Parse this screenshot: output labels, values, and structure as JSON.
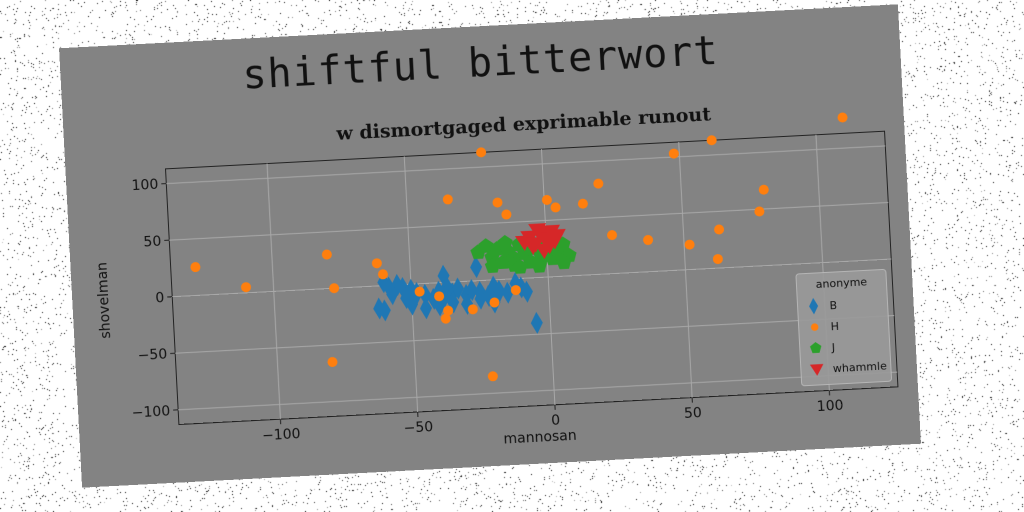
{
  "figure": {
    "suptitle": "shiftful bitterwort"
  },
  "chart_data": {
    "type": "scatter",
    "title": "w dismortgaged exprimable runout",
    "xlabel": "mannosan",
    "ylabel": "shovelman",
    "xlim": [
      -137,
      125
    ],
    "ylim": [
      -113,
      113
    ],
    "xticks": [
      -100,
      -50,
      0,
      50,
      100
    ],
    "yticks": [
      -100,
      -50,
      0,
      50,
      100
    ],
    "grid": true,
    "legend": {
      "title": "anonyme",
      "placement": "bottom-right"
    },
    "colors": {
      "B": "#1f77b4",
      "H": "#ff7f0e",
      "J": "#2ca02c",
      "whammle": "#d62728"
    },
    "series": [
      {
        "name": "B",
        "marker": "diamond",
        "points": [
          [
            -55,
            0
          ],
          [
            -58,
            -2
          ],
          [
            -60,
            3
          ],
          [
            -57,
            -8
          ],
          [
            -53,
            -3
          ],
          [
            -50,
            -5
          ],
          [
            -52,
            -12
          ],
          [
            -48,
            -8
          ],
          [
            -45,
            -10
          ],
          [
            -42,
            -14
          ],
          [
            -40,
            -8
          ],
          [
            -38,
            -12
          ],
          [
            -37,
            -4
          ],
          [
            -35,
            -10
          ],
          [
            -33,
            -6
          ],
          [
            -30,
            -12
          ],
          [
            -28,
            -8
          ],
          [
            -25,
            -10
          ],
          [
            -22,
            -14
          ],
          [
            -20,
            -6
          ],
          [
            -18,
            -10
          ],
          [
            -15,
            -12
          ],
          [
            -12,
            -4
          ],
          [
            -10,
            -8
          ],
          [
            -8,
            -12
          ],
          [
            -45,
            -22
          ],
          [
            -40,
            -20
          ],
          [
            -35,
            -18
          ],
          [
            -30,
            -20
          ],
          [
            -25,
            -16
          ],
          [
            -20,
            -20
          ],
          [
            -62,
            -20
          ],
          [
            -60,
            -22
          ],
          [
            -50,
            -18
          ],
          [
            -38,
            6
          ],
          [
            -26,
            12
          ],
          [
            -5,
            -40
          ]
        ]
      },
      {
        "name": "H",
        "marker": "circle",
        "points": [
          [
            -128,
            25
          ],
          [
            -110,
            5
          ],
          [
            -80,
            30
          ],
          [
            -78,
            0
          ],
          [
            -62,
            20
          ],
          [
            -60,
            10
          ],
          [
            -47,
            -7
          ],
          [
            -40,
            -12
          ],
          [
            -38,
            -32
          ],
          [
            -37,
            -25
          ],
          [
            -35,
            73
          ],
          [
            -28,
            -25
          ],
          [
            -22,
            113
          ],
          [
            -20,
            -20
          ],
          [
            -17,
            68
          ],
          [
            -14,
            57
          ],
          [
            -12,
            -10
          ],
          [
            1,
            68
          ],
          [
            4,
            61
          ],
          [
            14,
            63
          ],
          [
            20,
            80
          ],
          [
            24,
            34
          ],
          [
            37,
            28
          ],
          [
            48,
            103
          ],
          [
            52,
            22
          ],
          [
            62,
            113
          ],
          [
            62,
            8
          ],
          [
            63,
            34
          ],
          [
            78,
            48
          ],
          [
            80,
            67
          ],
          [
            110,
            127
          ],
          [
            -80,
            -65
          ],
          [
            -22,
            -85
          ]
        ]
      },
      {
        "name": "J",
        "marker": "pentagon",
        "points": [
          [
            -25,
            25
          ],
          [
            -22,
            30
          ],
          [
            -20,
            20
          ],
          [
            -18,
            27
          ],
          [
            -16,
            15
          ],
          [
            -14,
            24
          ],
          [
            -12,
            18
          ],
          [
            -10,
            30
          ],
          [
            -8,
            22
          ],
          [
            -6,
            14
          ],
          [
            -4,
            26
          ],
          [
            -2,
            18
          ],
          [
            0,
            25
          ],
          [
            2,
            16
          ],
          [
            4,
            22
          ],
          [
            6,
            28
          ],
          [
            8,
            18
          ],
          [
            -20,
            12
          ],
          [
            -12,
            12
          ],
          [
            -6,
            32
          ],
          [
            0,
            30
          ],
          [
            4,
            30
          ],
          [
            -15,
            32
          ],
          [
            -10,
            10
          ],
          [
            -3,
            10
          ],
          [
            6,
            12
          ]
        ]
      },
      {
        "name": "whammle",
        "marker": "triangle-down",
        "points": [
          [
            -8,
            32
          ],
          [
            -6,
            36
          ],
          [
            -4,
            30
          ],
          [
            -2,
            38
          ],
          [
            0,
            34
          ],
          [
            2,
            40
          ],
          [
            4,
            36
          ],
          [
            -5,
            28
          ],
          [
            1,
            28
          ],
          [
            -3,
            42
          ],
          [
            3,
            32
          ],
          [
            -1,
            24
          ]
        ]
      }
    ]
  }
}
